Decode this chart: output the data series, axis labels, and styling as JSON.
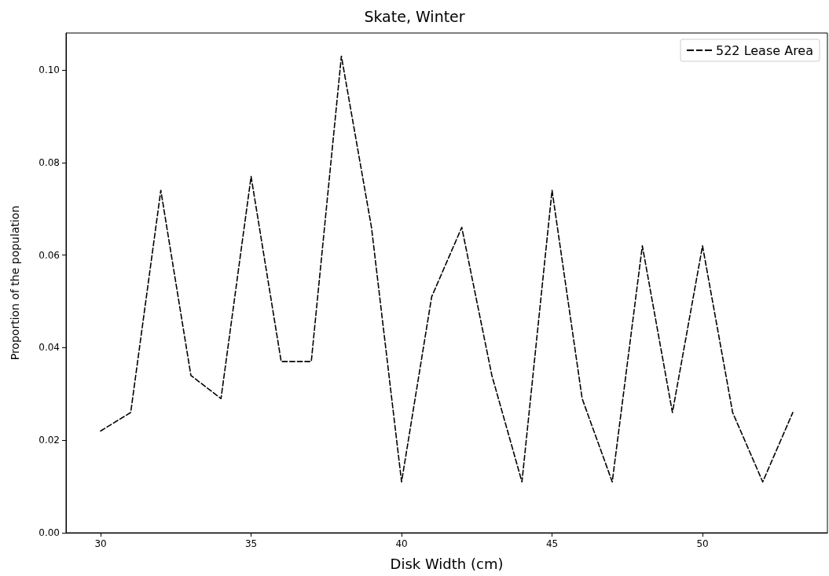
{
  "chart_data": {
    "type": "line",
    "title": "Skate, Winter",
    "xlabel": "Disk Width (cm)",
    "ylabel": "Proportion of the population",
    "x": [
      30,
      31,
      32,
      33,
      34,
      35,
      36,
      37,
      38,
      39,
      40,
      41,
      42,
      43,
      44,
      45,
      46,
      47,
      48,
      49,
      50,
      51,
      52,
      53
    ],
    "series": [
      {
        "name": "522 Lease Area",
        "color": "#000000",
        "values": [
          0.022,
          0.026,
          0.074,
          0.034,
          0.029,
          0.077,
          0.037,
          0.037,
          0.103,
          0.066,
          0.011,
          0.051,
          0.066,
          0.034,
          0.011,
          0.074,
          0.029,
          0.011,
          0.062,
          0.026,
          0.062,
          0.026,
          0.011,
          0.026
        ]
      }
    ],
    "xlim": [
      28.85,
      54.15
    ],
    "xticks": [
      30,
      35,
      40,
      45,
      50
    ],
    "ylim": [
      0,
      0.108
    ],
    "yticks": [
      {
        "value": 0,
        "label": "0.00"
      },
      {
        "value": 0.02,
        "label": "0.02"
      },
      {
        "value": 0.04,
        "label": "0.04"
      },
      {
        "value": 0.06,
        "label": "0.06"
      },
      {
        "value": 0.08,
        "label": "0.08"
      },
      {
        "value": 0.1,
        "label": "0.10"
      }
    ],
    "grid": false,
    "legend": "top right",
    "marker": "none",
    "line_style": "dashed"
  }
}
